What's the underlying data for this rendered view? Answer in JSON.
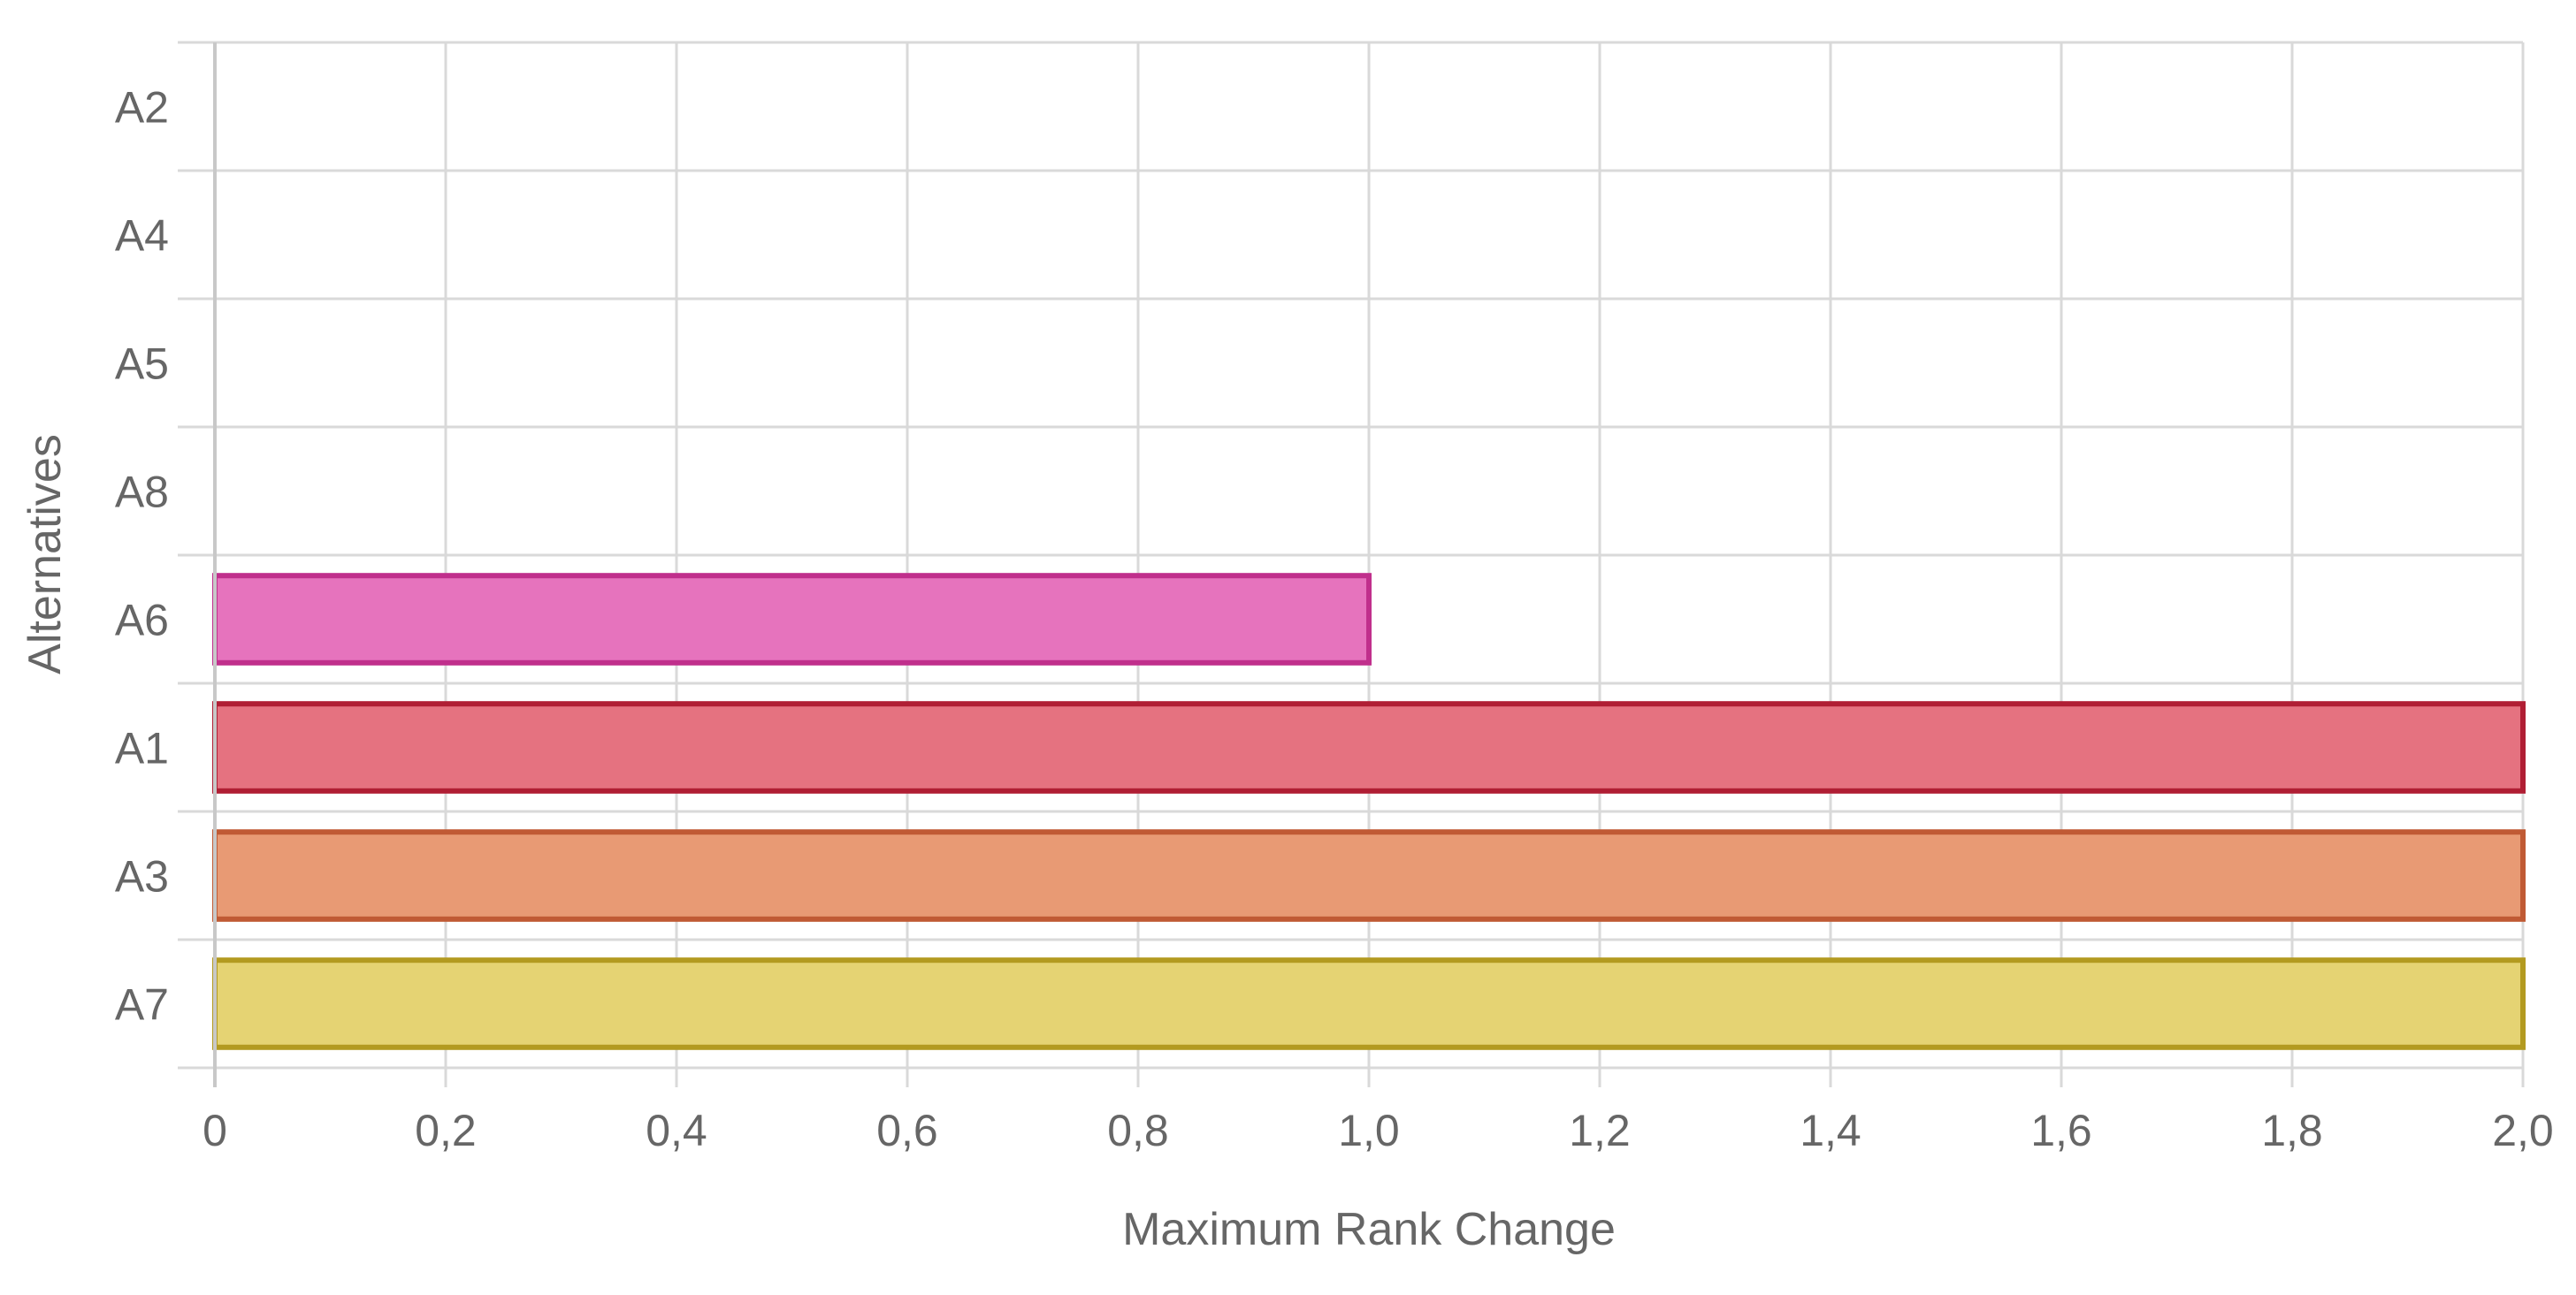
{
  "chart_data": {
    "type": "bar",
    "orientation": "horizontal",
    "categories": [
      "A2",
      "A4",
      "A5",
      "A8",
      "A6",
      "A1",
      "A3",
      "A7"
    ],
    "values": [
      0,
      0,
      0,
      0,
      1.0,
      2.0,
      2.0,
      2.0
    ],
    "bar_fill_colors": [
      "#e6e6e6",
      "#e6e6e6",
      "#e6e6e6",
      "#e6e6e6",
      "#e673bd",
      "#e57280",
      "#e89a74",
      "#e5d373"
    ],
    "bar_border_colors": [
      "#bdbdbd",
      "#bdbdbd",
      "#bdbdbd",
      "#bdbdbd",
      "#c02f8c",
      "#b01e34",
      "#c05a34",
      "#b39a20"
    ],
    "xlabel": "Maximum Rank Change",
    "ylabel": "Alternatives",
    "xlim": [
      0,
      2.0
    ],
    "x_ticks": [
      0,
      0.2,
      0.4,
      0.6,
      0.8,
      1.0,
      1.2,
      1.4,
      1.6,
      1.8,
      2.0
    ],
    "x_tick_labels": [
      "0",
      "0,2",
      "0,4",
      "0,6",
      "0,8",
      "1,0",
      "1,2",
      "1,4",
      "1,6",
      "1,8",
      "2,0"
    ],
    "grid": true,
    "legend": "none"
  }
}
